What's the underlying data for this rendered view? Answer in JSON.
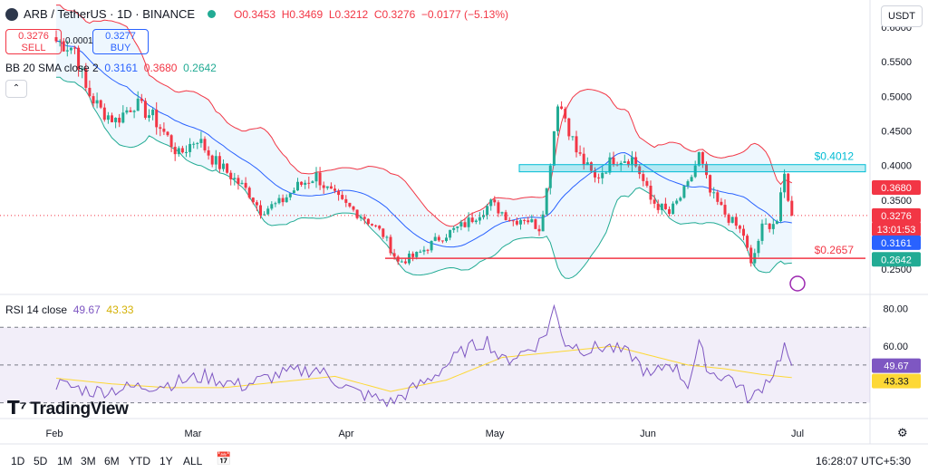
{
  "header": {
    "symbol": "ARB / TetherUS · 1D · BINANCE",
    "open": "O0.3453",
    "high": "H0.3469",
    "low": "L0.3212",
    "close": "C0.3276",
    "change": "−0.0177 (−5.13%)"
  },
  "trade": {
    "sell_price": "0.3276",
    "sell_label": "SELL",
    "spread": "0.0001",
    "buy_price": "0.3277",
    "buy_label": "BUY"
  },
  "indicators": {
    "bb_label": "BB 20 SMA close 2",
    "bb_basis": "0.3161",
    "bb_upper": "0.3680",
    "bb_lower": "0.2642",
    "rsi_label": "RSI 14 close",
    "rsi_value": "49.67",
    "rsi_ma": "43.33"
  },
  "currency_button": "USDT",
  "brand": "TradingView",
  "timeframes": [
    "1D",
    "5D",
    "1M",
    "3M",
    "6M",
    "YTD",
    "1Y",
    "ALL"
  ],
  "clock": "16:28:07 UTC+5:30",
  "colors": {
    "up": "#22ab94",
    "down": "#f23645",
    "bb_upper": "#f23645",
    "bb_lower": "#22ab94",
    "bb_basis": "#2962ff",
    "bb_fill": "#2196f3",
    "rsi_line": "#7e57c2",
    "rsi_ma": "#fdd835",
    "rsi_band": "#7e57c2"
  },
  "chart_data": {
    "type": "candlestick",
    "price_axis": {
      "ylim": [
        0.22,
        0.6
      ],
      "ticks": [
        "0.2500",
        "0.3000",
        "0.3500",
        "0.4000",
        "0.4500",
        "0.5000",
        "0.5500",
        "0.6000"
      ]
    },
    "x_labels": [
      "Feb",
      "Mar",
      "Apr",
      "May",
      "Jun",
      "Jul"
    ],
    "price_labels": [
      {
        "text": "0.3680",
        "value": 0.368,
        "color": "#f23645"
      },
      {
        "text": "0.3276",
        "value": 0.3276,
        "color": "#f23645"
      },
      {
        "text": "13:01:53",
        "value": 0.3276,
        "color": "#f23645",
        "sub": true
      },
      {
        "text": "0.3161",
        "value": 0.3161,
        "color": "#2962ff"
      },
      {
        "text": "0.2642",
        "value": 0.2642,
        "color": "#22ab94"
      }
    ],
    "annotations": [
      {
        "text": "$0.4012",
        "type": "zone",
        "low": 0.3908,
        "high": 0.4012,
        "color": "#00bcd4"
      },
      {
        "text": "$0.2657",
        "type": "line",
        "value": 0.2657,
        "color": "#f23645"
      }
    ],
    "series": [
      {
        "name": "ARB/USDT",
        "kind": "ohlc",
        "start_date": "2024-01-17",
        "interval_days": 1,
        "anchors": [
          [
            0,
            0.58
          ],
          [
            5,
            0.57
          ],
          [
            8,
            0.51
          ],
          [
            12,
            0.48
          ],
          [
            16,
            0.465
          ],
          [
            21,
            0.49
          ],
          [
            26,
            0.47
          ],
          [
            30,
            0.44
          ],
          [
            33,
            0.415
          ],
          [
            38,
            0.44
          ],
          [
            42,
            0.41
          ],
          [
            47,
            0.385
          ],
          [
            52,
            0.36
          ],
          [
            55,
            0.335
          ],
          [
            60,
            0.345
          ],
          [
            65,
            0.37
          ],
          [
            70,
            0.385
          ],
          [
            73,
            0.365
          ],
          [
            77,
            0.345
          ],
          [
            83,
            0.325
          ],
          [
            88,
            0.3
          ],
          [
            92,
            0.26
          ],
          [
            97,
            0.27
          ],
          [
            103,
            0.295
          ],
          [
            110,
            0.315
          ],
          [
            117,
            0.345
          ],
          [
            123,
            0.32
          ],
          [
            126,
            0.325
          ],
          [
            130,
            0.31
          ],
          [
            132,
            0.365
          ],
          [
            135,
            0.495
          ],
          [
            137,
            0.47
          ],
          [
            140,
            0.42
          ],
          [
            145,
            0.38
          ],
          [
            150,
            0.41
          ],
          [
            155,
            0.41
          ],
          [
            157,
            0.39
          ],
          [
            160,
            0.35
          ],
          [
            165,
            0.33
          ],
          [
            170,
            0.37
          ],
          [
            173,
            0.415
          ],
          [
            176,
            0.36
          ],
          [
            180,
            0.33
          ],
          [
            185,
            0.3
          ],
          [
            187,
            0.255
          ],
          [
            190,
            0.31
          ],
          [
            194,
            0.32
          ],
          [
            196,
            0.385
          ],
          [
            197,
            0.355
          ],
          [
            198,
            0.3276
          ]
        ]
      },
      {
        "name": "BB Upper",
        "values": [
          "0.3680"
        ]
      },
      {
        "name": "BB Basis",
        "values": [
          "0.3161"
        ]
      },
      {
        "name": "BB Lower",
        "values": [
          "0.2642"
        ]
      }
    ],
    "rsi": {
      "ylim": [
        25,
        85
      ],
      "ticks": [
        "80.00",
        "60.00"
      ],
      "band": [
        30,
        70
      ],
      "rsi_anchors": [
        [
          0,
          40
        ],
        [
          10,
          36
        ],
        [
          20,
          38
        ],
        [
          30,
          40
        ],
        [
          40,
          44
        ],
        [
          50,
          39
        ],
        [
          60,
          45
        ],
        [
          70,
          48
        ],
        [
          80,
          36
        ],
        [
          90,
          30
        ],
        [
          100,
          42
        ],
        [
          110,
          58
        ],
        [
          116,
          63
        ],
        [
          120,
          52
        ],
        [
          126,
          57
        ],
        [
          130,
          62
        ],
        [
          132,
          68
        ],
        [
          134,
          80
        ],
        [
          137,
          62
        ],
        [
          143,
          58
        ],
        [
          148,
          60
        ],
        [
          155,
          55
        ],
        [
          160,
          43
        ],
        [
          165,
          52
        ],
        [
          170,
          40
        ],
        [
          173,
          60
        ],
        [
          176,
          46
        ],
        [
          182,
          43
        ],
        [
          187,
          31
        ],
        [
          190,
          39
        ],
        [
          193,
          46
        ],
        [
          196,
          60
        ],
        [
          198,
          49.67
        ]
      ],
      "ma_anchors": [
        [
          0,
          43
        ],
        [
          15,
          40
        ],
        [
          30,
          38
        ],
        [
          45,
          38
        ],
        [
          60,
          41
        ],
        [
          75,
          44
        ],
        [
          90,
          36
        ],
        [
          105,
          42
        ],
        [
          120,
          54
        ],
        [
          135,
          57
        ],
        [
          150,
          60
        ],
        [
          160,
          55
        ],
        [
          170,
          50
        ],
        [
          180,
          48
        ],
        [
          190,
          45
        ],
        [
          198,
          43.33
        ]
      ]
    }
  }
}
